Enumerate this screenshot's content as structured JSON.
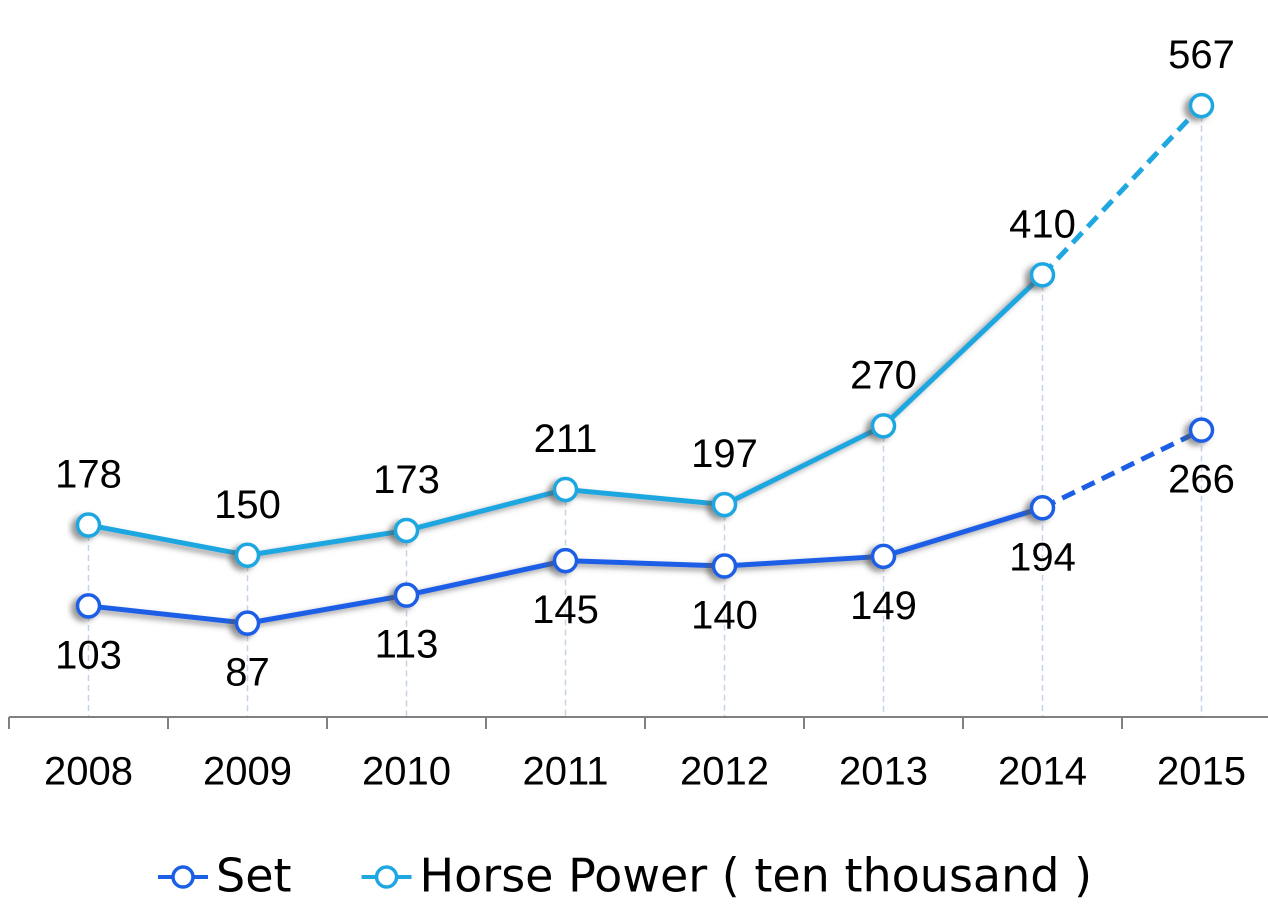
{
  "chart_data": {
    "type": "line",
    "categories": [
      "2008",
      "2009",
      "2010",
      "2011",
      "2012",
      "2013",
      "2014",
      "2015"
    ],
    "series": [
      {
        "name": "Set",
        "color": "#1a5fe6",
        "values": [
          103,
          87,
          113,
          145,
          140,
          149,
          194,
          266
        ],
        "label_position": "below",
        "last_segment": "dashed"
      },
      {
        "name": "Horse Power ( ten thousand )",
        "color": "#1ea7e1",
        "values": [
          178,
          150,
          173,
          211,
          197,
          270,
          410,
          567
        ],
        "label_position": "above",
        "last_segment": "dashed"
      }
    ],
    "ylim": [
      0,
      600
    ],
    "legend": "bottom",
    "drop_lines": true
  }
}
